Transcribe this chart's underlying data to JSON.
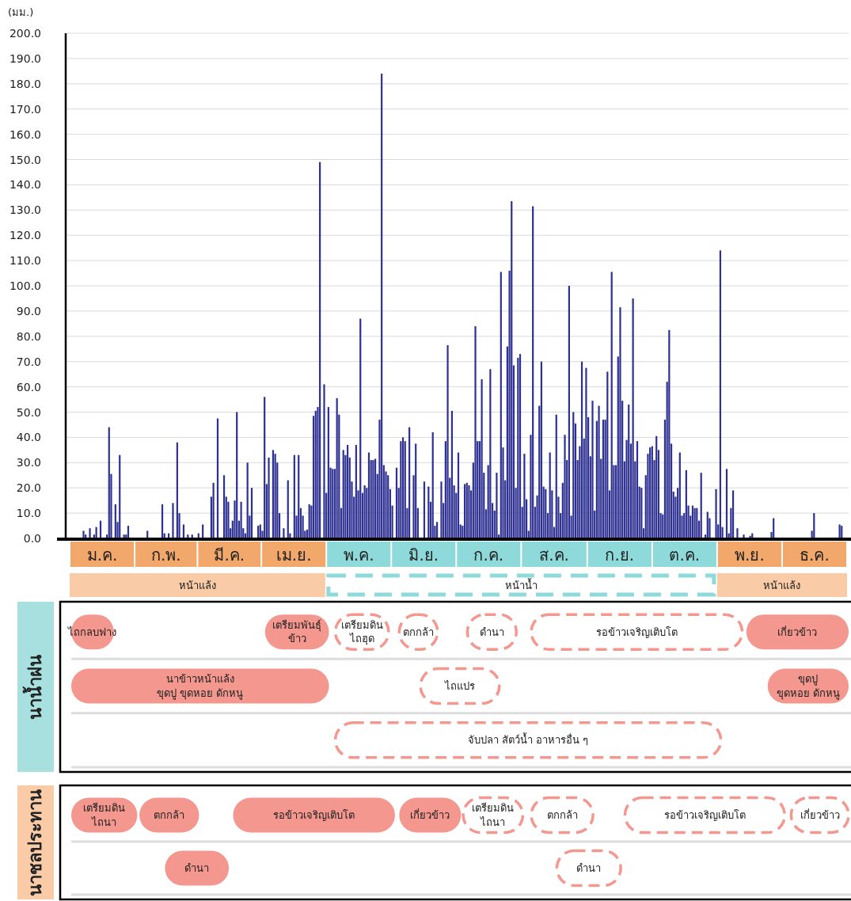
{
  "chart_data": [
    {
      "type": "bar",
      "ylabel": "(มม.)",
      "color": "#2e3192",
      "grid": "y",
      "ylim": [
        0,
        200
      ],
      "yticks": [
        {
          "value": 0,
          "label": "0.0"
        },
        {
          "value": 10,
          "label": "10.0"
        },
        {
          "value": 20,
          "label": "20.0"
        },
        {
          "value": 30,
          "label": "30.0"
        },
        {
          "value": 40,
          "label": "40.0"
        },
        {
          "value": 50,
          "label": "50.0"
        },
        {
          "value": 60,
          "label": "60.0"
        },
        {
          "value": 70,
          "label": "70.0"
        },
        {
          "value": 80,
          "label": "80.0"
        },
        {
          "value": 90,
          "label": "90.0"
        },
        {
          "value": 100,
          "label": "100.0"
        },
        {
          "value": 110,
          "label": "110.0"
        },
        {
          "value": 120,
          "label": "120.0"
        },
        {
          "value": 130,
          "label": "130.0"
        },
        {
          "value": 140,
          "label": "140.0"
        },
        {
          "value": 150,
          "label": "150.0"
        },
        {
          "value": 160,
          "label": "160.0"
        },
        {
          "value": 170,
          "label": "170.0"
        },
        {
          "value": 180,
          "label": "180.0"
        },
        {
          "value": 190,
          "label": "190.0"
        },
        {
          "value": 200,
          "label": "200.0"
        }
      ],
      "annotations": [
        "หน้าแล้ง",
        "หน้าน้ำ",
        "หน้าแล้ง"
      ],
      "categories": [
        null,
        null,
        null,
        null,
        null,
        null,
        null,
        null,
        null,
        null,
        null,
        null,
        null,
        null,
        null,
        "ม.ค.",
        null,
        null,
        null,
        null,
        null,
        null,
        null,
        null,
        null,
        null,
        null,
        null,
        null,
        null,
        null,
        null,
        null,
        null,
        null,
        null,
        null,
        null,
        null,
        null,
        null,
        null,
        null,
        null,
        null,
        "ก.พ.",
        null,
        null,
        null,
        null,
        null,
        null,
        null,
        null,
        null,
        null,
        null,
        null,
        null,
        null,
        null,
        null,
        null,
        null,
        null,
        null,
        null,
        null,
        null,
        null,
        null,
        null,
        null,
        null,
        "มี.ค.",
        null,
        null,
        null,
        null,
        null,
        null,
        null,
        null,
        null,
        null,
        null,
        null,
        null,
        null,
        null,
        null,
        null,
        null,
        null,
        null,
        null,
        null,
        null,
        null,
        null,
        null,
        null,
        null,
        null,
        null,
        "เม.ย.",
        null,
        null,
        null,
        null,
        null,
        null,
        null,
        null,
        null,
        null,
        null,
        null,
        null,
        null,
        null,
        null,
        null,
        null,
        null,
        null,
        null,
        null,
        null,
        null,
        null,
        null,
        null,
        null,
        null,
        "พ.ค.",
        null,
        null,
        null,
        null,
        null,
        null,
        null,
        null,
        null,
        null,
        null,
        null,
        null,
        null,
        null,
        null,
        null,
        null,
        null,
        null,
        null,
        null,
        null,
        null,
        null,
        null,
        null,
        null,
        null,
        null,
        "มิ.ย.",
        null,
        null,
        null,
        null,
        null,
        null,
        null,
        null,
        null,
        null,
        null,
        null,
        null,
        null,
        null,
        null,
        null,
        null,
        null,
        null,
        null,
        null,
        null,
        null,
        null,
        null,
        null,
        null,
        null,
        "ก.ค.",
        null,
        null,
        null,
        null,
        null,
        null,
        null,
        null,
        null,
        null,
        null,
        null,
        null,
        null,
        null,
        null,
        null,
        null,
        null,
        null,
        null,
        null,
        null,
        null,
        null,
        null,
        null,
        null,
        null,
        null,
        "ส.ค.",
        null,
        null,
        null,
        null,
        null,
        null,
        null,
        null,
        null,
        null,
        null,
        null,
        null,
        null,
        null,
        null,
        null,
        null,
        null,
        null,
        null,
        null,
        null,
        null,
        null,
        null,
        null,
        null,
        null,
        null,
        "ก.ย.",
        null,
        null,
        null,
        null,
        null,
        null,
        null,
        null,
        null,
        null,
        null,
        null,
        null,
        null,
        null,
        null,
        null,
        null,
        null,
        null,
        null,
        null,
        null,
        null,
        null,
        null,
        null,
        null,
        null,
        "ต.ค.",
        null,
        null,
        null,
        null,
        null,
        null,
        null,
        null,
        null,
        null,
        null,
        null,
        null,
        null,
        null,
        null,
        null,
        null,
        null,
        null,
        null,
        null,
        null,
        null,
        null,
        null,
        null,
        null,
        null,
        null,
        "พ.ย.",
        null,
        null,
        null,
        null,
        null,
        null,
        null,
        null,
        null,
        null,
        null,
        null,
        null,
        null,
        null,
        null,
        null,
        null,
        null,
        null,
        null,
        null,
        null,
        null,
        null,
        null,
        null,
        null,
        null,
        "ธ.ค.",
        null,
        null,
        null,
        null,
        null,
        null,
        null,
        null,
        null,
        null,
        null,
        null,
        null,
        null,
        null
      ],
      "values": [
        null,
        null,
        null,
        null,
        null,
        null,
        3,
        1.5,
        null,
        4,
        null,
        1.5,
        4.5,
        null,
        7,
        null,
        null,
        1.5,
        44,
        25.5,
        null,
        13.5,
        6.5,
        33,
        null,
        1.5,
        1.5,
        5,
        null,
        null,
        null,
        null,
        null,
        null,
        null,
        null,
        3,
        null,
        null,
        null,
        null,
        null,
        null,
        13.5,
        2,
        null,
        2,
        null,
        14,
        null,
        38,
        10,
        null,
        5.5,
        null,
        1.5,
        null,
        1.5,
        null,
        null,
        2,
        null,
        5.5,
        null,
        null,
        null,
        16.5,
        22,
        null,
        47.5,
        null,
        null,
        25,
        16.5,
        14.5,
        4,
        7,
        15,
        50,
        7,
        14.5,
        4,
        2,
        30,
        9,
        20,
        null,
        null,
        5,
        5.5,
        3,
        56,
        21.5,
        32,
        null,
        35,
        33.5,
        30,
        10,
        null,
        4,
        null,
        23,
        2,
        null,
        33,
        9,
        33,
        12,
        9,
        3,
        3.5,
        13.5,
        13,
        48.5,
        50.5,
        52,
        149,
        null,
        61,
        18,
        52,
        28,
        27.5,
        27.5,
        55.5,
        49,
        12,
        35,
        33,
        37,
        32,
        22.5,
        16.5,
        37,
        19,
        87,
        18,
        21,
        20,
        34,
        31,
        31,
        31.5,
        25.5,
        47,
        184,
        29,
        26.5,
        25,
        19.5,
        13,
        null,
        28,
        20,
        38.5,
        40,
        38.5,
        12,
        44,
        null,
        25,
        37.5,
        12,
        null,
        null,
        22.5,
        null,
        20.5,
        14.5,
        42,
        5,
        6.5,
        null,
        22.5,
        14,
        38.5,
        76.5,
        24,
        50.5,
        21,
        18,
        34,
        5.5,
        5,
        21.5,
        22,
        21,
        19,
        30,
        84,
        38.5,
        38.5,
        63,
        26,
        11.5,
        29,
        67,
        14,
        11,
        26,
        1.5,
        105.5,
        36,
        23,
        76,
        106,
        133.5,
        68.5,
        20,
        71.5,
        73,
        12.5,
        33.5,
        15.5,
        3,
        41,
        131.5,
        12.5,
        17,
        52.5,
        70,
        20.5,
        19.5,
        10,
        34,
        19,
        4.5,
        49,
        16.5,
        10,
        22,
        41,
        31,
        100,
        9,
        50,
        45.5,
        31,
        36.5,
        70,
        39.5,
        67.5,
        48,
        32.5,
        54.5,
        11,
        46.5,
        52.5,
        31.5,
        47,
        47,
        66,
        19,
        105.5,
        29,
        29,
        72,
        91.5,
        54.5,
        30.5,
        39,
        53,
        37.5,
        95,
        30.5,
        38.5,
        20.5,
        20,
        4,
        25,
        33.5,
        36,
        36.5,
        31,
        40.5,
        35,
        10,
        9.5,
        47,
        62,
        82.5,
        37.5,
        18.5,
        16.5,
        20,
        34,
        9,
        10,
        27,
        13,
        9,
        13,
        12,
        12,
        7,
        26,
        null,
        1.5,
        10.5,
        8,
        null,
        null,
        19.5,
        5.5,
        114,
        4.5,
        null,
        27.5,
        2,
        12,
        19,
        null,
        4,
        null,
        null,
        1.5,
        null,
        null,
        1,
        2,
        null,
        null,
        null,
        null,
        null,
        null,
        null,
        null,
        2.5,
        8,
        null,
        null,
        null,
        null,
        null,
        null,
        null,
        null,
        null,
        null,
        null,
        null,
        null,
        null,
        null,
        null,
        null,
        3,
        10,
        null,
        null,
        null,
        null,
        null,
        null,
        null,
        null,
        null,
        null,
        null,
        5.5,
        5,
        null,
        null
      ]
    },
    {
      "type": "other",
      "title": "นาน้ำฝน",
      "annotations": [
        "ไถกลบฟาง",
        "เตรียมพันธุ์\nข้าว",
        "เตรียมดิน\nไถฮุด",
        "ตกกล้า",
        "ดำนา",
        "รอข้าวเจริญเติบโต",
        "เกี่ยวข้าว",
        "นาข้าวหน้าแล้ง\nขุดปู ขุดหอย ดักหนู",
        "ไถแปร",
        "ขุดปู\nขุดหอย ดักหนู",
        "จับปลา สัตว์น้ำ อาหารอื่น ๆ"
      ]
    },
    {
      "type": "other",
      "title": "นาชลประทาน",
      "annotations": [
        "เตรียมดิน\nไถนา",
        "ตกกล้า",
        "รอข้าวเจริญเติบโต",
        "เกี่ยวข้าว",
        "เตรียมดิน\nไถนา",
        "ตกกล้า",
        "รอข้าวเจริญเติบโต",
        "เกี่ยวข้าว",
        "ดำนา",
        "ดำนา"
      ]
    }
  ]
}
